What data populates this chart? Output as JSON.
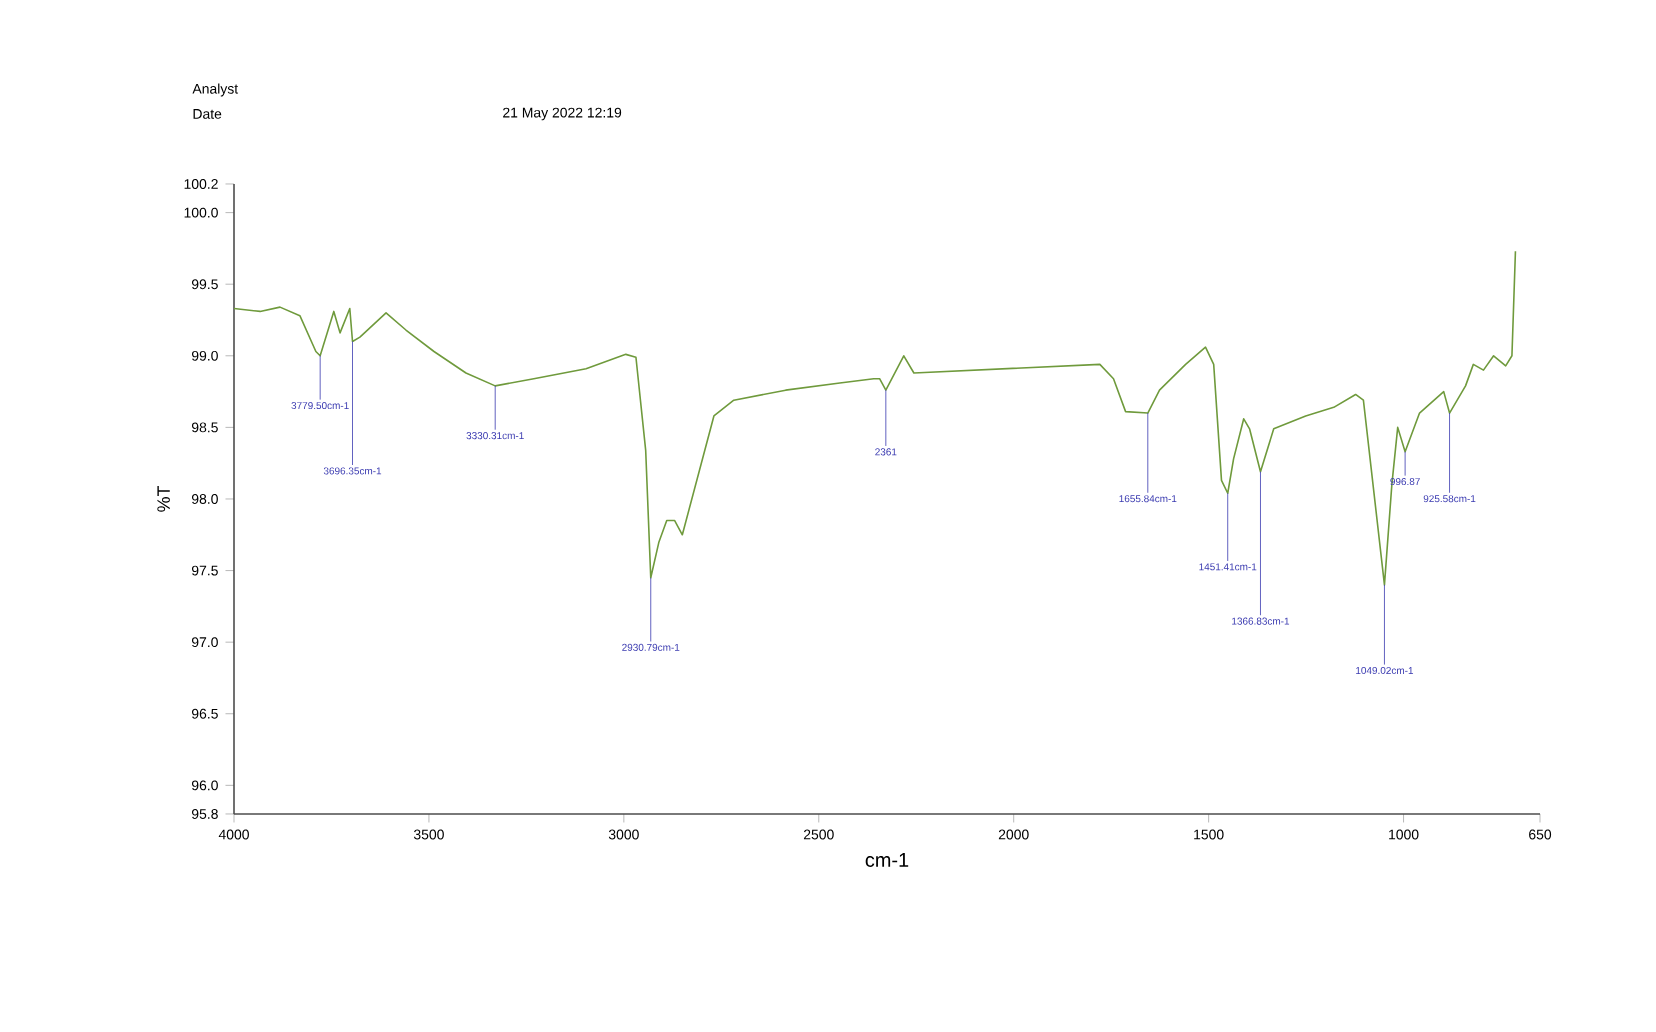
{
  "chart_data": {
    "type": "line",
    "xlabel": "cm-1",
    "ylabel": "%T",
    "xlim": [
      4000,
      650
    ],
    "ylim": [
      95.8,
      100.2
    ],
    "xticks": [
      4000,
      3500,
      3000,
      2500,
      2000,
      1500,
      1000,
      650
    ],
    "yticks": [
      {
        "value": 95.8,
        "label": "95.8"
      },
      {
        "value": 96.0,
        "label": "96.0"
      },
      {
        "value": 96.5,
        "label": "96.5"
      },
      {
        "value": 97.0,
        "label": "97.0"
      },
      {
        "value": 97.5,
        "label": "97.5"
      },
      {
        "value": 98.0,
        "label": "98.0"
      },
      {
        "value": 98.5,
        "label": "98.5"
      },
      {
        "value": 99.0,
        "label": "99.0"
      },
      {
        "value": 99.5,
        "label": "99.5"
      },
      {
        "value": 100.0,
        "label": "100.0"
      },
      {
        "value": 100.2,
        "label": "100.2"
      }
    ],
    "grid": false,
    "marker": "none",
    "line_style": "solid",
    "series": [
      {
        "color": "#6f9a3c",
        "x": [
          4000,
          3933,
          3882,
          3831,
          3790,
          3779,
          3744,
          3728,
          3703,
          3696,
          3677,
          3610,
          3559,
          3487,
          3405,
          3330,
          3231,
          3097,
          2995,
          2969,
          2944,
          2931,
          2910,
          2890,
          2870,
          2850,
          2769,
          2718,
          2585,
          2446,
          2359,
          2344,
          2328,
          2282,
          2256,
          1779,
          1744,
          1713,
          1656,
          1626,
          1559,
          1508,
          1487,
          1467,
          1451,
          1436,
          1410,
          1395,
          1367,
          1333,
          1251,
          1179,
          1123,
          1103,
          1049,
          1030,
          1015,
          996,
          959,
          897,
          882,
          841,
          821,
          795,
          769,
          738,
          722,
          713
        ],
        "values": [
          99.33,
          99.31,
          99.34,
          99.28,
          99.03,
          99.0,
          99.31,
          99.16,
          99.33,
          99.1,
          99.13,
          99.3,
          99.18,
          99.03,
          98.88,
          98.79,
          98.84,
          98.91,
          99.01,
          98.99,
          98.34,
          97.45,
          97.7,
          97.85,
          97.85,
          97.75,
          98.58,
          98.69,
          98.76,
          98.81,
          98.84,
          98.84,
          98.76,
          99.0,
          98.88,
          98.94,
          98.84,
          98.61,
          98.6,
          98.76,
          98.94,
          99.06,
          98.94,
          98.13,
          98.04,
          98.28,
          98.56,
          98.49,
          98.19,
          98.49,
          98.58,
          98.64,
          98.73,
          98.69,
          97.4,
          98.1,
          98.5,
          98.33,
          98.6,
          98.75,
          98.6,
          98.79,
          98.94,
          98.9,
          99.0,
          98.93,
          99.0,
          99.73
        ]
      }
    ],
    "annotations": [
      "Analyst",
      "Date",
      "21 May 2022 12:19",
      {
        "text": "3779.50cm-1",
        "x": 3779,
        "y": 99.0
      },
      {
        "text": "3696.35cm-1",
        "x": 3696,
        "y": 99.1
      },
      {
        "text": "3330.31cm-1",
        "x": 3330,
        "y": 98.79
      },
      {
        "text": "2930.79cm-1",
        "x": 2931,
        "y": 97.45
      },
      {
        "text": "2361",
        "x": 2328,
        "y": 98.76
      },
      {
        "text": "1655.84cm-1",
        "x": 1656,
        "y": 98.6
      },
      {
        "text": "1451.41cm-1",
        "x": 1451,
        "y": 98.04
      },
      {
        "text": "1366.83cm-1",
        "x": 1367,
        "y": 98.19
      },
      {
        "text": "1049.02cm-1",
        "x": 1049,
        "y": 97.4
      },
      {
        "text": "996.87",
        "x": 996,
        "y": 98.33
      },
      {
        "text": "925.58cm-1",
        "x": 882,
        "y": 98.6
      }
    ]
  }
}
